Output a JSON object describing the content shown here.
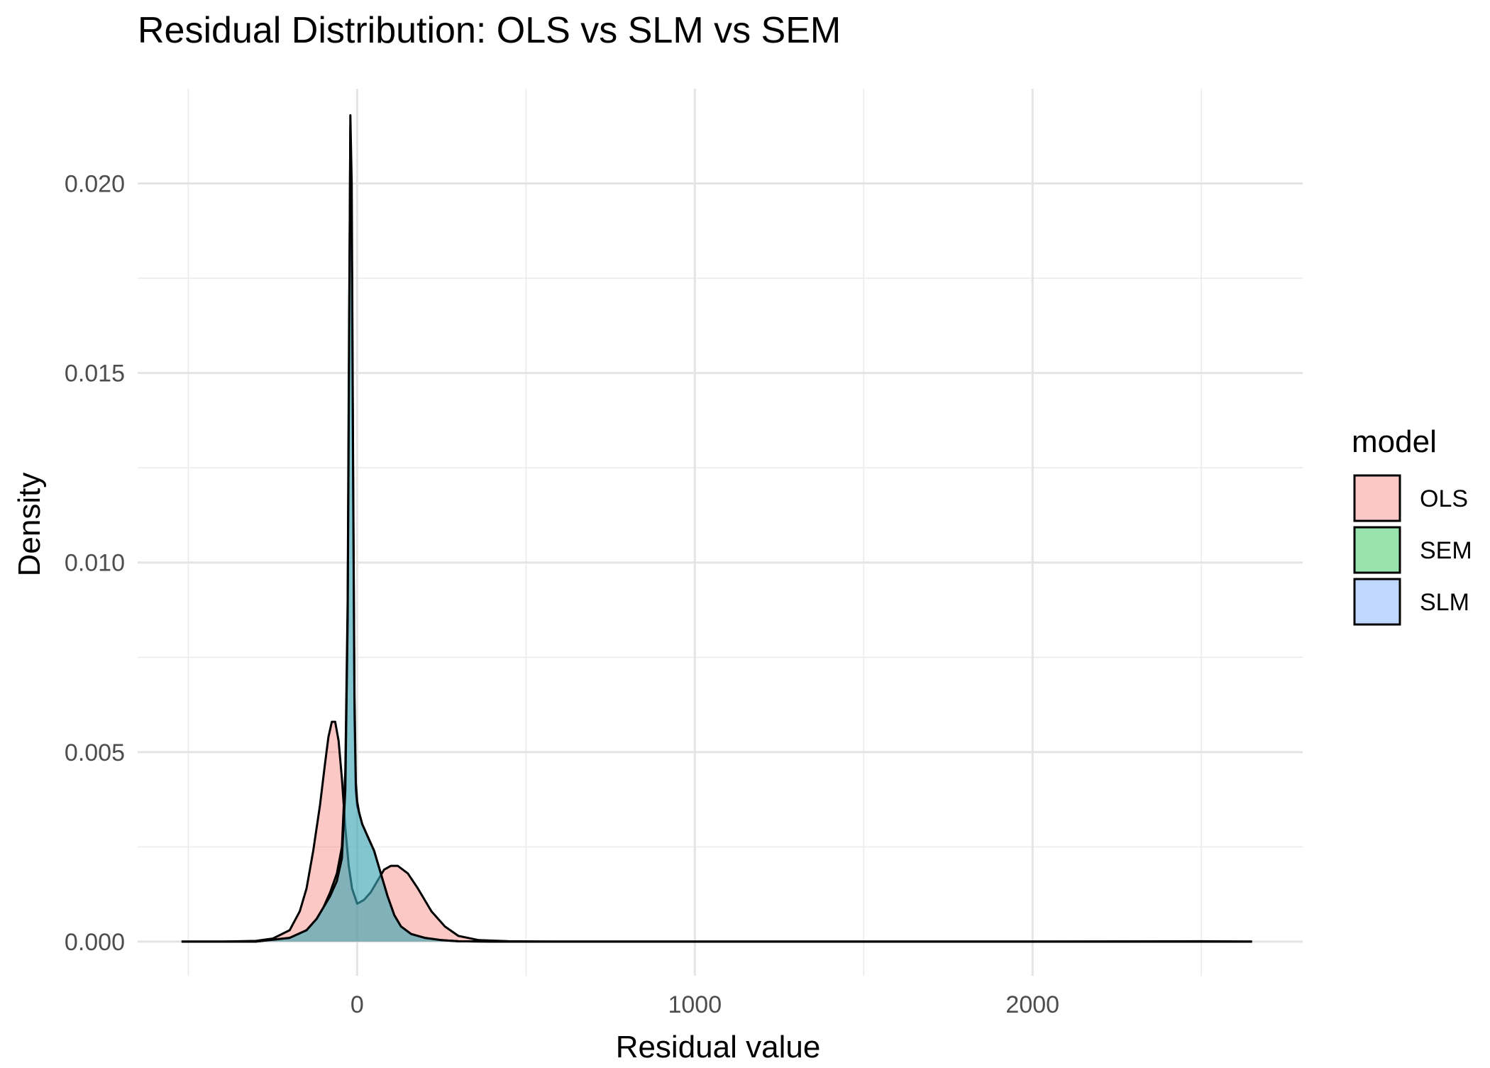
{
  "chart_data": {
    "type": "area",
    "title": "Residual Distribution: OLS vs SLM vs SEM",
    "xlabel": "Residual value",
    "ylabel": "Density",
    "xlim": [
      -650,
      2800
    ],
    "ylim": [
      -0.0009,
      0.0225
    ],
    "x_ticks": [
      0,
      1000,
      2000
    ],
    "x_tick_labels": [
      "0",
      "1000",
      "2000"
    ],
    "y_ticks": [
      0.0,
      0.005,
      0.01,
      0.015,
      0.02
    ],
    "y_tick_labels": [
      "0.000",
      "0.005",
      "0.010",
      "0.015",
      "0.020"
    ],
    "grid": true,
    "legend": {
      "title": "model",
      "placement": "right",
      "entries": [
        "OLS",
        "SEM",
        "SLM"
      ]
    },
    "series": [
      {
        "name": "OLS",
        "color": "#F8766D",
        "x": [
          -520,
          -400,
          -300,
          -250,
          -200,
          -170,
          -150,
          -130,
          -110,
          -95,
          -85,
          -75,
          -65,
          -55,
          -45,
          -35,
          -25,
          -15,
          0,
          20,
          40,
          60,
          80,
          100,
          120,
          150,
          180,
          220,
          260,
          300,
          360,
          450,
          600,
          1000,
          2000,
          2500,
          2650
        ],
        "y": [
          0,
          0.0,
          2e-05,
          8e-05,
          0.0003,
          0.0008,
          0.0014,
          0.0024,
          0.0036,
          0.0047,
          0.0054,
          0.0058,
          0.0058,
          0.0053,
          0.0043,
          0.003,
          0.002,
          0.0014,
          0.001,
          0.0011,
          0.0013,
          0.0016,
          0.0019,
          0.002,
          0.002,
          0.0018,
          0.0014,
          0.0008,
          0.0004,
          0.00015,
          4e-05,
          1e-05,
          0.0,
          0.0,
          0.0,
          1e-05,
          0
        ]
      },
      {
        "name": "SEM",
        "color": "#00BA38",
        "x": [
          -520,
          -300,
          -200,
          -150,
          -120,
          -100,
          -80,
          -60,
          -45,
          -35,
          -28,
          -24,
          -20,
          -16,
          -12,
          -8,
          -4,
          0,
          6,
          15,
          30,
          50,
          70,
          90,
          110,
          130,
          160,
          200,
          250,
          300,
          400,
          600,
          1000,
          2000,
          2650
        ],
        "y": [
          0,
          0.0,
          0.0001,
          0.0003,
          0.0006,
          0.0009,
          0.0013,
          0.0018,
          0.0025,
          0.0045,
          0.009,
          0.016,
          0.0215,
          0.019,
          0.012,
          0.006,
          0.004,
          0.0036,
          0.0034,
          0.0031,
          0.0028,
          0.0024,
          0.0018,
          0.0012,
          0.0007,
          0.0004,
          0.0002,
          0.0001,
          4e-05,
          1e-05,
          0,
          0,
          0,
          0,
          0
        ]
      },
      {
        "name": "SLM",
        "color": "#619CFF",
        "x": [
          -520,
          -300,
          -200,
          -150,
          -120,
          -100,
          -80,
          -60,
          -45,
          -35,
          -28,
          -24,
          -20,
          -16,
          -12,
          -8,
          -4,
          0,
          6,
          15,
          30,
          50,
          70,
          90,
          110,
          130,
          160,
          200,
          250,
          300,
          400,
          600,
          1000,
          2000,
          2650
        ],
        "y": [
          0,
          0.0,
          0.0001,
          0.0003,
          0.0006,
          0.0009,
          0.0012,
          0.0016,
          0.0022,
          0.004,
          0.0085,
          0.015,
          0.0218,
          0.02,
          0.0125,
          0.0065,
          0.0042,
          0.0037,
          0.0034,
          0.0031,
          0.0028,
          0.0024,
          0.0018,
          0.0012,
          0.0007,
          0.0004,
          0.0002,
          0.0001,
          4e-05,
          1e-05,
          0,
          0,
          0,
          0,
          0
        ]
      }
    ]
  }
}
